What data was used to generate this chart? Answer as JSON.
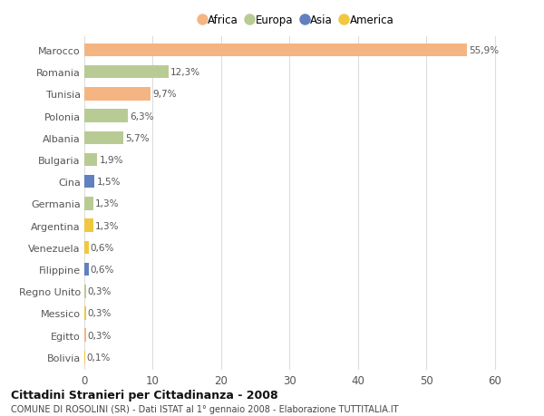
{
  "countries": [
    "Marocco",
    "Romania",
    "Tunisia",
    "Polonia",
    "Albania",
    "Bulgaria",
    "Cina",
    "Germania",
    "Argentina",
    "Venezuela",
    "Filippine",
    "Regno Unito",
    "Messico",
    "Egitto",
    "Bolivia"
  ],
  "values": [
    55.9,
    12.3,
    9.7,
    6.3,
    5.7,
    1.9,
    1.5,
    1.3,
    1.3,
    0.6,
    0.6,
    0.3,
    0.3,
    0.3,
    0.1
  ],
  "labels": [
    "55,9%",
    "12,3%",
    "9,7%",
    "6,3%",
    "5,7%",
    "1,9%",
    "1,5%",
    "1,3%",
    "1,3%",
    "0,6%",
    "0,6%",
    "0,3%",
    "0,3%",
    "0,3%",
    "0,1%"
  ],
  "continents": [
    "Africa",
    "Europa",
    "Africa",
    "Europa",
    "Europa",
    "Europa",
    "Asia",
    "Europa",
    "America",
    "America",
    "Asia",
    "Europa",
    "America",
    "Africa",
    "America"
  ],
  "continent_colors": {
    "Africa": "#F5B583",
    "Europa": "#B8CB94",
    "Asia": "#6080C0",
    "America": "#F0C840"
  },
  "legend_order": [
    "Africa",
    "Europa",
    "Asia",
    "America"
  ],
  "title1": "Cittadini Stranieri per Cittadinanza - 2008",
  "title2": "COMUNE DI ROSOLINI (SR) - Dati ISTAT al 1° gennaio 2008 - Elaborazione TUTTITALIA.IT",
  "xlabel_ticks": [
    0,
    10,
    20,
    30,
    40,
    50,
    60
  ],
  "xlim": [
    0,
    62
  ],
  "background_color": "#ffffff",
  "grid_color": "#dddddd",
  "bar_height": 0.6
}
